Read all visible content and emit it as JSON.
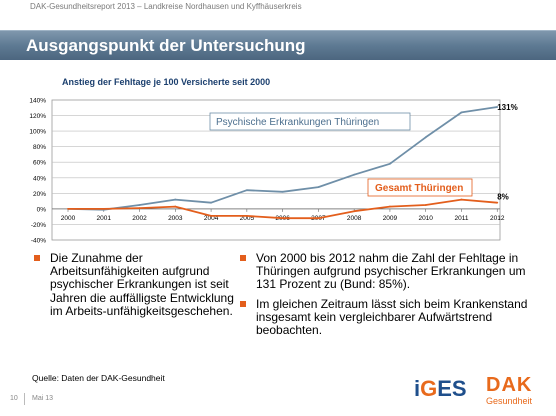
{
  "header": {
    "text": "DAK-Gesundheitsreport 2013 – Landkreise Nordhausen und Kyffhäuserkreis"
  },
  "title": "Ausgangspunkt der Untersuchung",
  "chart_data": {
    "type": "line",
    "title": "Anstieg der Fehltage je 100 Versicherte seit 2000",
    "x": [
      "2000",
      "2001",
      "2002",
      "2003",
      "2004",
      "2005",
      "2006",
      "2007",
      "2008",
      "2009",
      "2010",
      "2011",
      "2012"
    ],
    "yticks": [
      "140%",
      "120%",
      "100%",
      "80%",
      "60%",
      "40%",
      "20%",
      "0%",
      "-20%",
      "-40%"
    ],
    "ylim": [
      -40,
      140
    ],
    "grid": true,
    "series": [
      {
        "name": "Psychische Erkrankungen Thüringen",
        "color": "#6f8fa8",
        "values": [
          0,
          -1,
          5,
          12,
          8,
          24,
          22,
          28,
          44,
          58,
          92,
          124,
          131
        ],
        "end_label": "131%"
      },
      {
        "name": "Gesamt Thüringen",
        "color": "#e35e1c",
        "values": [
          0,
          0,
          1,
          3,
          -9,
          -9,
          -12,
          -12,
          -3,
          3,
          5,
          12,
          8
        ],
        "end_label": "8%"
      }
    ]
  },
  "bullets_left": [
    "Die Zunahme der Arbeitsunfähigkeiten aufgrund psychischer Erkrankungen ist seit Jahren die auffälligste Entwicklung im Arbeits-unfähigkeitsgeschehen."
  ],
  "bullets_right": [
    "Von 2000 bis 2012 nahm die Zahl der Fehltage in Thüringen aufgrund psychischer Erkrankungen um 131 Prozent zu (Bund: 85%).",
    "Im gleichen Zeitraum lässt sich beim Krankenstand insgesamt kein vergleichbarer Aufwärtstrend beobachten."
  ],
  "source": "Quelle: Daten der DAK-Gesundheit",
  "footer": {
    "page": "10",
    "date": "Mai 13"
  },
  "logos": {
    "iges_first": "i",
    "iges_g": "G",
    "iges_rest": "ES",
    "dak": "DAK",
    "dak_sub": "Gesundheit"
  },
  "colors": {
    "accent": "#e35e1c",
    "title_bar": "#5e7a93",
    "subtitle": "#1b3f6e"
  }
}
